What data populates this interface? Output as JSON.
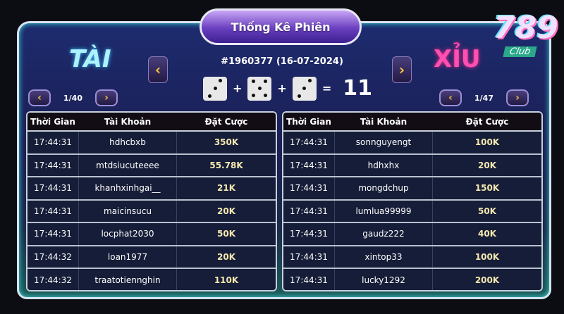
{
  "title": "Thống Kê Phiên",
  "session": "#1960377 (16-07-2024)",
  "brand": {
    "number": "789",
    "club": "Club"
  },
  "tai": {
    "label": "TÀI",
    "page": "1/40"
  },
  "xiu": {
    "label": "XỈU",
    "page": "1/47"
  },
  "dice": [
    3,
    5,
    3
  ],
  "total": "11",
  "nav": {
    "prev": "‹",
    "next": "›",
    "plus": "+",
    "equals": "="
  },
  "columns": [
    "Thời Gian",
    "Tài Khoản",
    "Đặt Cược"
  ],
  "tai_rows": [
    [
      "17:44:31",
      "hdhcbxb",
      "350K"
    ],
    [
      "17:44:31",
      "mtdsiucuteeee",
      "55.78K"
    ],
    [
      "17:44:31",
      "khanhxinhgai__",
      "21K"
    ],
    [
      "17:44:31",
      "maicinsucu",
      "20K"
    ],
    [
      "17:44:31",
      "locphat2030",
      "50K"
    ],
    [
      "17:44:32",
      "loan1977",
      "20K"
    ],
    [
      "17:44:32",
      "traatotiennghin",
      "110K"
    ]
  ],
  "xiu_rows": [
    [
      "17:44:31",
      "sonnguyengt",
      "100K"
    ],
    [
      "17:44:31",
      "hdhxhx",
      "20K"
    ],
    [
      "17:44:31",
      "mongdchup",
      "150K"
    ],
    [
      "17:44:31",
      "lumlua99999",
      "50K"
    ],
    [
      "17:44:31",
      "gaudz222",
      "40K"
    ],
    [
      "17:44:31",
      "xintop33",
      "100K"
    ],
    [
      "17:44:31",
      "lucky1292",
      "200K"
    ]
  ]
}
